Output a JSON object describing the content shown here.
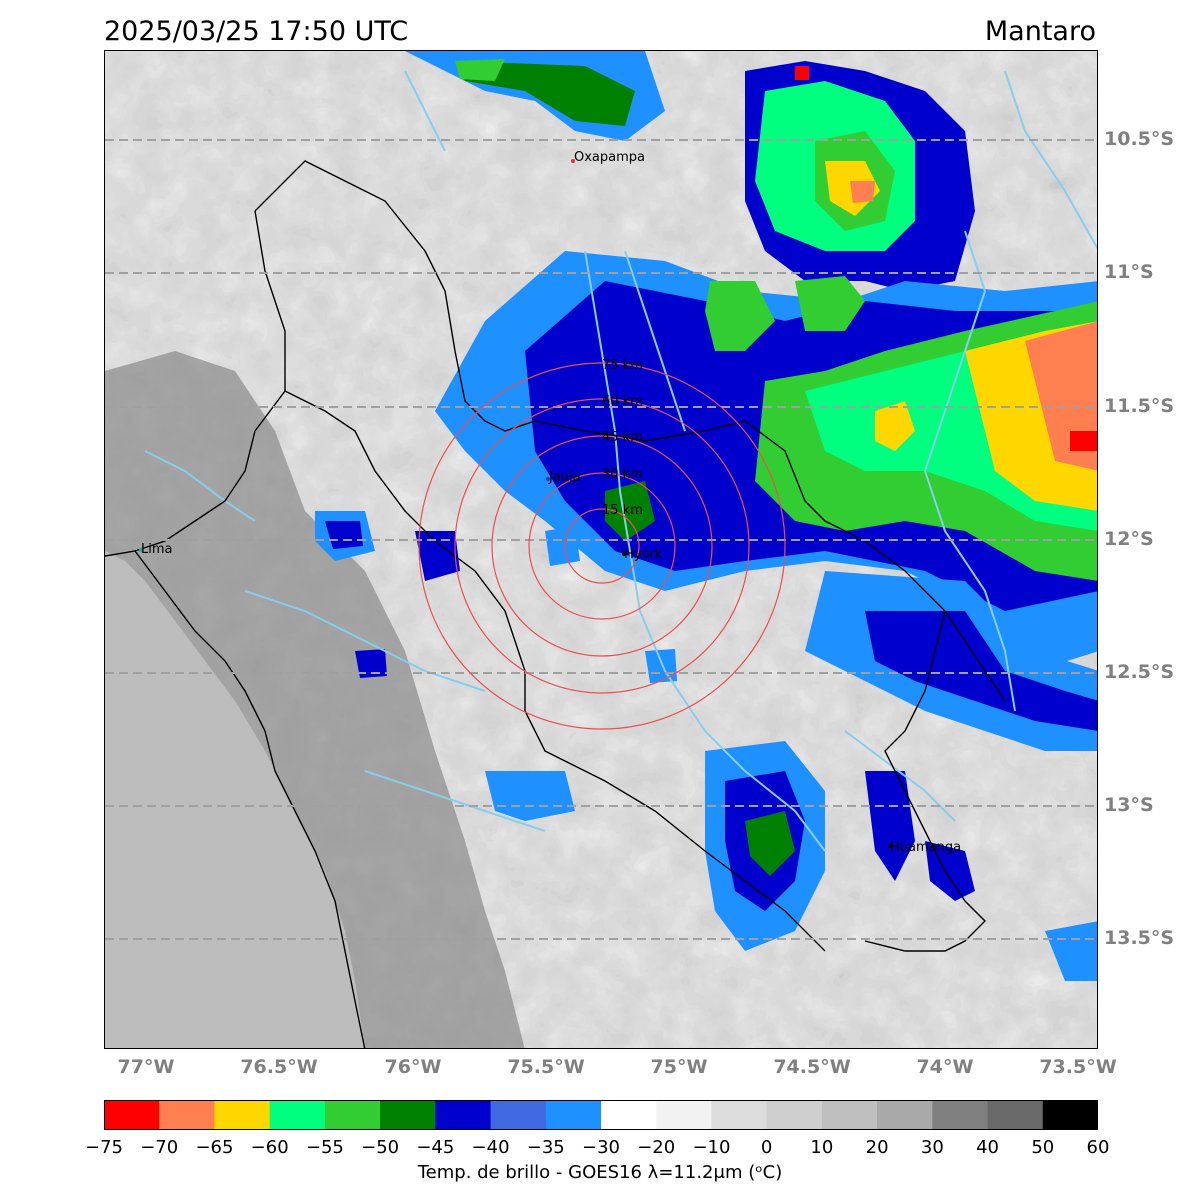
{
  "header": {
    "timestamp": "2025/03/25 17:50 UTC",
    "region": "Mantaro"
  },
  "map": {
    "lat_labels": [
      "10.5°S",
      "11°S",
      "11.5°S",
      "12°S",
      "12.5°S",
      "13°S",
      "13.5°S"
    ],
    "lon_labels": [
      "77°W",
      "76.5°W",
      "76°W",
      "75.5°W",
      "75°W",
      "74.5°W",
      "74°W",
      "73.5°W"
    ],
    "cities": [
      {
        "name": "Oxapampa",
        "color": "#e03030"
      },
      {
        "name": "Jauja",
        "color": "#1f3fbf"
      },
      {
        "name": "Lima",
        "color": "#2aa8a0"
      },
      {
        "name": "Hyork",
        "color": "#000000"
      },
      {
        "name": "Huamanga",
        "color": "#000000"
      }
    ],
    "range_rings": [
      "15 km",
      "30 km",
      "45 km",
      "60 km",
      "75 km"
    ],
    "ring_color": "#e85050",
    "river_color": "#87ceeb",
    "border_color": "#000000"
  },
  "colorbar": {
    "ticks": [
      "−75",
      "−70",
      "−65",
      "−60",
      "−55",
      "−50",
      "−45",
      "−40",
      "−35",
      "−30",
      "−20",
      "−10",
      "0",
      "10",
      "20",
      "30",
      "40",
      "50",
      "60"
    ],
    "colors": [
      "#ff0000",
      "#ff7f50",
      "#ffd700",
      "#00ff7f",
      "#32cd32",
      "#008000",
      "#0000cd",
      "#4169e1",
      "#1e90ff",
      "#ffffff",
      "#f2f2f2",
      "#dcdcdc",
      "#cfcfcf",
      "#bfbfbf",
      "#a9a9a9",
      "#808080",
      "#696969",
      "#000000"
    ],
    "label": "Temp. de brillo - GOES16 λ=11.2μm (ᵒC)"
  }
}
